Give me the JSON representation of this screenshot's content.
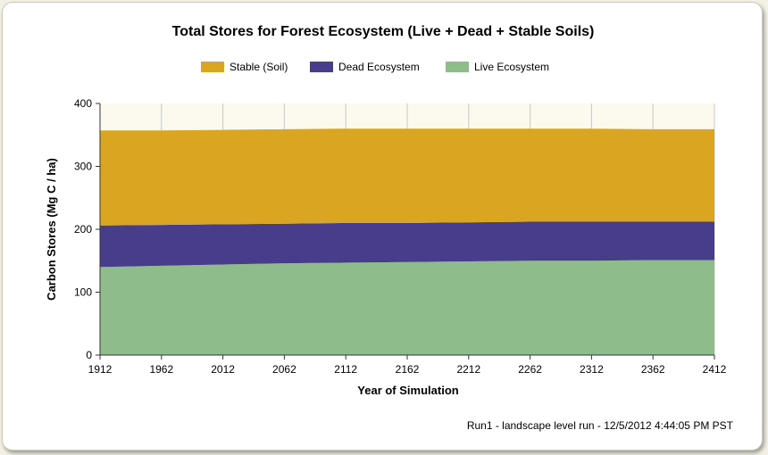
{
  "chart_data": {
    "type": "area",
    "stacked": true,
    "title": "Total Stores for Forest Ecosystem (Live + Dead + Stable Soils)",
    "xlabel": "Year of Simulation",
    "ylabel": "Carbon Stores (Mg C / ha)",
    "x": [
      1912,
      1962,
      2012,
      2062,
      2112,
      2162,
      2212,
      2262,
      2312,
      2362,
      2412
    ],
    "x_ticks": [
      "1912",
      "1962",
      "2012",
      "2062",
      "2112",
      "2162",
      "2212",
      "2262",
      "2312",
      "2362",
      "2412"
    ],
    "y_ticks": [
      "0",
      "100",
      "200",
      "300",
      "400"
    ],
    "xlim": [
      1912,
      2412
    ],
    "ylim": [
      0,
      400
    ],
    "grid": "vertical",
    "legend_position": "top",
    "plot_background": "#fcf9ee",
    "series": [
      {
        "name": "Live Ecosystem",
        "color": "#8fbc8b",
        "values": [
          140,
          142,
          144,
          146,
          147,
          148,
          149,
          150,
          150,
          151,
          151
        ]
      },
      {
        "name": "Dead Ecosystem",
        "color": "#483d8b",
        "values": [
          66,
          65,
          64,
          63,
          63,
          62,
          62,
          62,
          62,
          61,
          61
        ]
      },
      {
        "name": "Stable (Soil)",
        "color": "#daa520",
        "values": [
          151,
          150,
          150,
          150,
          150,
          150,
          149,
          148,
          148,
          147,
          147
        ]
      }
    ],
    "legend_order": [
      "Stable (Soil)",
      "Dead Ecosystem",
      "Live Ecosystem"
    ]
  },
  "footer": {
    "run_info": "Run1 - landscape level run - 12/5/2012 4:44:05 PM PST"
  }
}
